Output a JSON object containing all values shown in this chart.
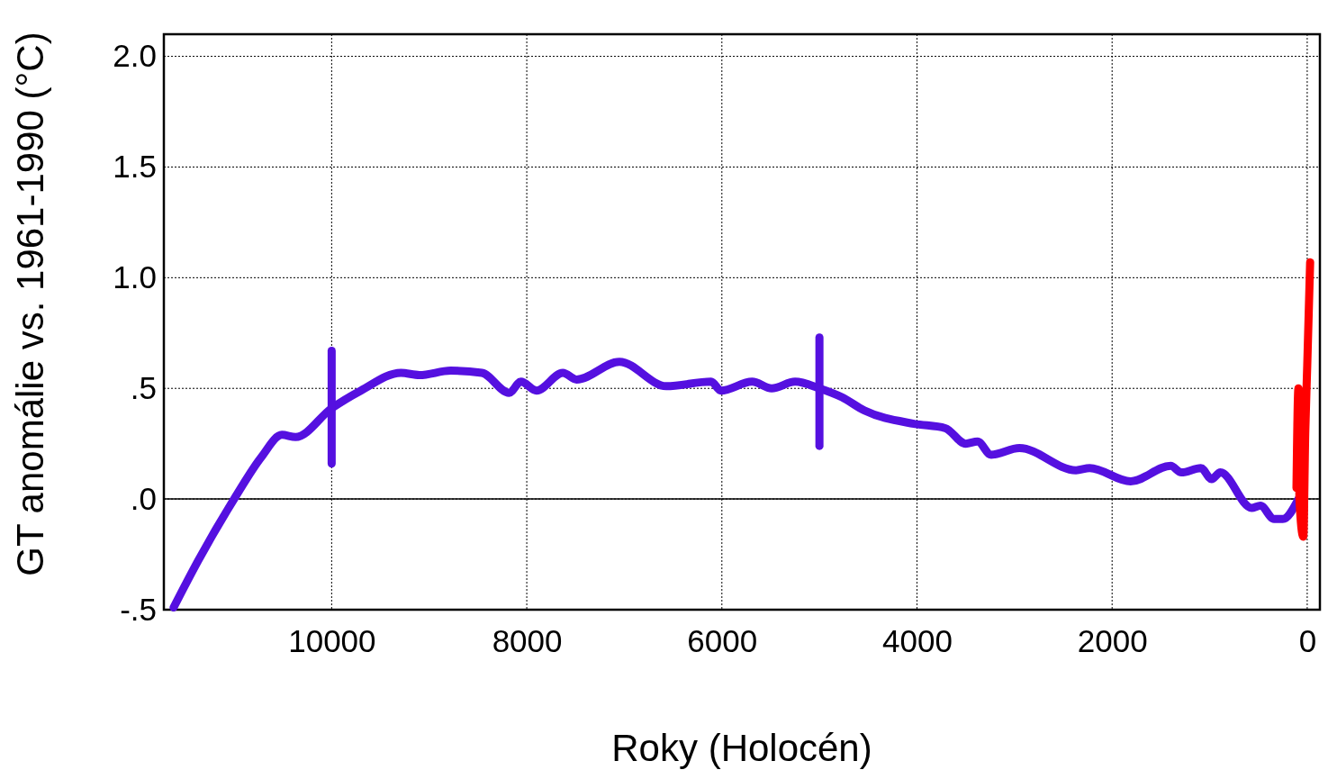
{
  "chart_data": {
    "type": "line",
    "xlabel": "Roky (Holocén)",
    "ylabel": "GT anomálie vs. 1961-1990  (°C)",
    "xlim": [
      11720,
      -130
    ],
    "ylim": [
      -0.5,
      2.1
    ],
    "xticks": [
      10000,
      8000,
      6000,
      4000,
      2000,
      0
    ],
    "yticks": [
      {
        "value": -0.5,
        "label": "-.5"
      },
      {
        "value": 0,
        "label": ".0"
      },
      {
        "value": 0.5,
        "label": ".5"
      },
      {
        "value": 1,
        "label": "1.0"
      },
      {
        "value": 1.5,
        "label": "1.5"
      },
      {
        "value": 2,
        "label": "2.0"
      }
    ],
    "grid": true,
    "marker": "none",
    "line_style": "solid",
    "ref_lines": [
      {
        "axis": "y",
        "value": 0,
        "color": "#000000",
        "line_style": "solid"
      }
    ],
    "series": [
      {
        "color": "#5510e0",
        "x": [
          11620,
          11370,
          11000,
          10720,
          10510,
          10370,
          10000,
          9700,
          9290,
          9100,
          8780,
          8460,
          8180,
          8060,
          7900,
          7630,
          7490,
          7050,
          6570,
          6110,
          6010,
          5690,
          5490,
          5250,
          5000,
          4770,
          4540,
          4030,
          3710,
          3500,
          3380,
          3240,
          2950,
          2370,
          2230,
          1810,
          1400,
          1290,
          1090,
          980,
          890,
          570,
          480,
          340,
          250,
          90
        ],
        "values": [
          -0.49,
          -0.28,
          0.0,
          0.19,
          0.29,
          0.28,
          0.41,
          0.49,
          0.57,
          0.56,
          0.58,
          0.57,
          0.48,
          0.53,
          0.49,
          0.57,
          0.54,
          0.62,
          0.51,
          0.53,
          0.49,
          0.53,
          0.5,
          0.53,
          0.5,
          0.46,
          0.4,
          0.34,
          0.32,
          0.25,
          0.26,
          0.2,
          0.23,
          0.13,
          0.14,
          0.08,
          0.15,
          0.12,
          0.14,
          0.09,
          0.12,
          -0.04,
          -0.03,
          -0.09,
          -0.09,
          0.0
        ]
      },
      {
        "color": "#5510e0",
        "x": [
          10000,
          10000
        ],
        "values": [
          0.16,
          0.67
        ]
      },
      {
        "color": "#5510e0",
        "x": [
          5000,
          5000
        ],
        "values": [
          0.24,
          0.73
        ]
      },
      {
        "color": "#ff0000",
        "x": [
          110,
          90,
          80,
          40,
          20,
          0,
          -30
        ],
        "values": [
          0.05,
          0.5,
          0.0,
          -0.17,
          0.3,
          0.6,
          1.07
        ]
      }
    ]
  }
}
